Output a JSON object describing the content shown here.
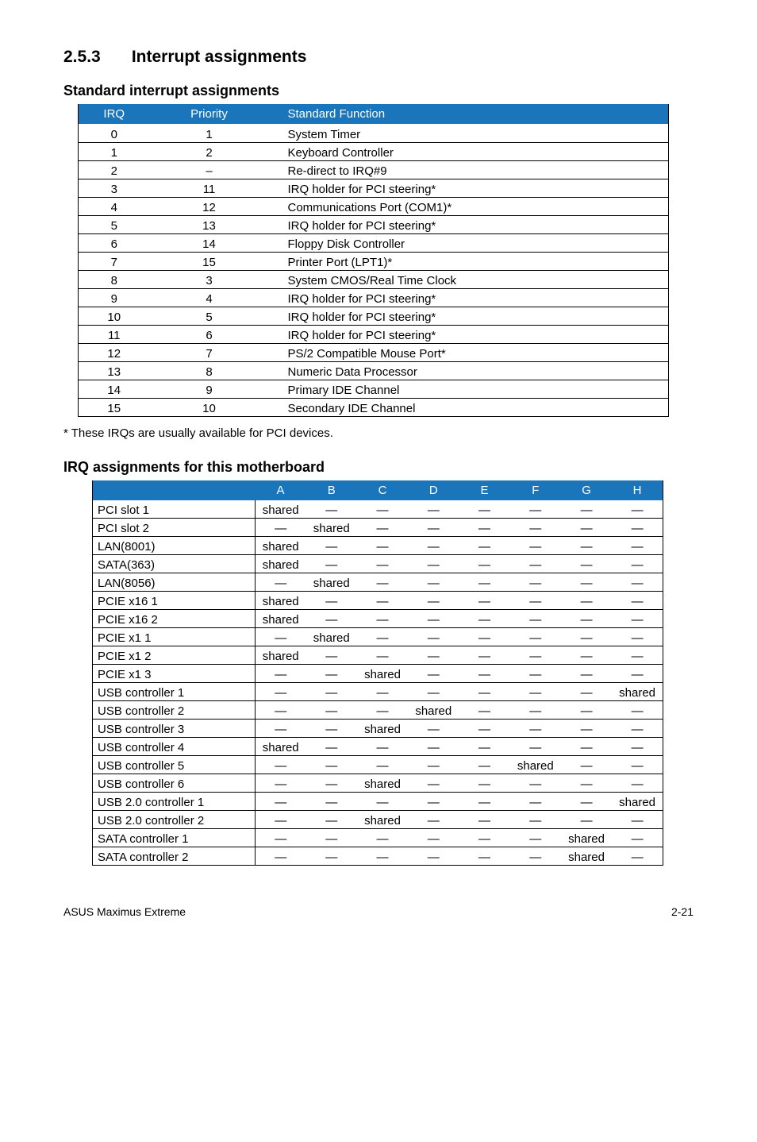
{
  "colors": {
    "header_bg": "#1b75bb",
    "header_fg": "#ffffff",
    "border": "#000000",
    "text": "#000000",
    "bg": "#ffffff"
  },
  "headings": {
    "section_num": "2.5.3",
    "section_title": "Interrupt assignments",
    "sub1": "Standard interrupt assignments",
    "sub2": "IRQ assignments for this motherboard"
  },
  "table1": {
    "headers": [
      "IRQ",
      "Priority",
      "Standard Function"
    ],
    "rows": [
      [
        "0",
        "1",
        "System Timer"
      ],
      [
        "1",
        "2",
        "Keyboard Controller"
      ],
      [
        "2",
        "–",
        "Re-direct to IRQ#9"
      ],
      [
        "3",
        "11",
        "IRQ holder for PCI steering*"
      ],
      [
        "4",
        "12",
        "Communications Port (COM1)*"
      ],
      [
        "5",
        "13",
        "IRQ holder for PCI steering*"
      ],
      [
        "6",
        "14",
        "Floppy Disk Controller"
      ],
      [
        "7",
        "15",
        "Printer Port (LPT1)*"
      ],
      [
        "8",
        "3",
        "System CMOS/Real Time Clock"
      ],
      [
        "9",
        "4",
        "IRQ holder for PCI steering*"
      ],
      [
        "10",
        "5",
        "IRQ holder for PCI steering*"
      ],
      [
        "11",
        "6",
        "IRQ holder for PCI steering*"
      ],
      [
        "12",
        "7",
        "PS/2 Compatible Mouse Port*"
      ],
      [
        "13",
        "8",
        "Numeric Data Processor"
      ],
      [
        "14",
        "9",
        "Primary IDE Channel"
      ],
      [
        "15",
        "10",
        "Secondary IDE Channel"
      ]
    ]
  },
  "note": "* These IRQs are usually available for PCI devices.",
  "table2": {
    "headers": [
      "",
      "A",
      "B",
      "C",
      "D",
      "E",
      "F",
      "G",
      "H"
    ],
    "rows": [
      [
        "PCI slot 1",
        "shared",
        "—",
        "—",
        "—",
        "—",
        "—",
        "—",
        "—"
      ],
      [
        "PCI slot 2",
        "—",
        "shared",
        "—",
        "—",
        "—",
        "—",
        "—",
        "—"
      ],
      [
        "LAN(8001)",
        "shared",
        "—",
        "—",
        "—",
        "—",
        "—",
        "—",
        "—"
      ],
      [
        "SATA(363)",
        "shared",
        "—",
        "—",
        "—",
        "—",
        "—",
        "—",
        "—"
      ],
      [
        "LAN(8056)",
        "—",
        "shared",
        "—",
        "—",
        "—",
        "—",
        "—",
        "—"
      ],
      [
        "PCIE x16 1",
        "shared",
        "—",
        "—",
        "—",
        "—",
        "—",
        "—",
        "—"
      ],
      [
        "PCIE x16 2",
        "shared",
        "—",
        "—",
        "—",
        "—",
        "—",
        "—",
        "—"
      ],
      [
        "PCIE x1 1",
        "—",
        "shared",
        "—",
        "—",
        "—",
        "—",
        "—",
        "—"
      ],
      [
        "PCIE x1 2",
        "shared",
        "—",
        "—",
        "—",
        "—",
        "—",
        "—",
        "—"
      ],
      [
        "PCIE x1 3",
        "—",
        "—",
        "shared",
        "—",
        "—",
        "—",
        "—",
        "—"
      ],
      [
        "USB controller 1",
        "—",
        "—",
        "—",
        "—",
        "—",
        "—",
        "—",
        "shared"
      ],
      [
        "USB controller 2",
        "—",
        "—",
        "—",
        "shared",
        "—",
        "—",
        "—",
        "—"
      ],
      [
        "USB controller 3",
        "—",
        "—",
        "shared",
        "—",
        "—",
        "—",
        "—",
        "—"
      ],
      [
        "USB controller 4",
        "shared",
        "—",
        "—",
        "—",
        "—",
        "—",
        "—",
        "—"
      ],
      [
        "USB controller 5",
        "—",
        "—",
        "—",
        "—",
        "—",
        "shared",
        "—",
        "—"
      ],
      [
        "USB controller 6",
        "—",
        "—",
        "shared",
        "—",
        "—",
        "—",
        "—",
        "—"
      ],
      [
        "USB 2.0 controller 1",
        "—",
        "—",
        "—",
        "—",
        "—",
        "—",
        "—",
        "shared"
      ],
      [
        "USB 2.0 controller 2",
        "—",
        "—",
        "shared",
        "—",
        "—",
        "—",
        "—",
        "—"
      ],
      [
        "SATA controller 1",
        "—",
        "—",
        "—",
        "—",
        "—",
        "—",
        "shared",
        "—"
      ],
      [
        "SATA controller 2",
        "—",
        "—",
        "—",
        "—",
        "—",
        "—",
        "shared",
        "—"
      ]
    ]
  },
  "footer": {
    "left": "ASUS Maximus Extreme",
    "right": "2-21"
  }
}
